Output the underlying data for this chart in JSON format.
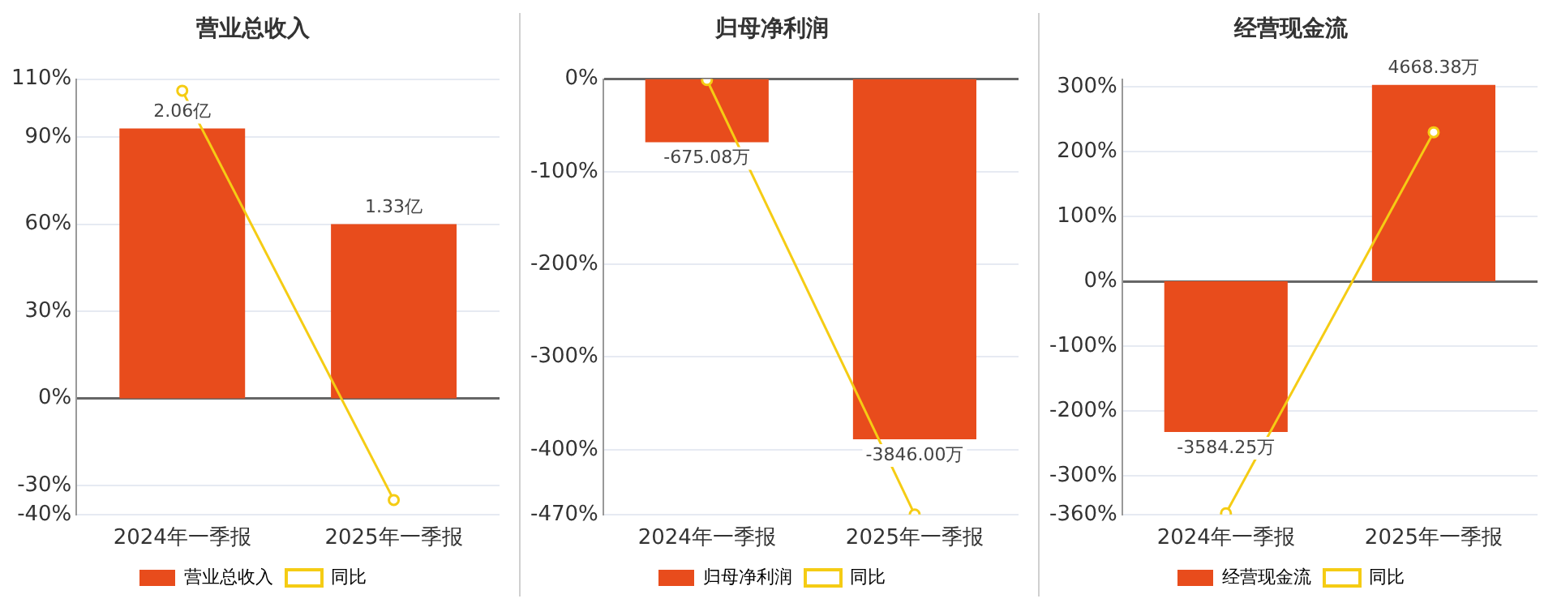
{
  "chart_data": [
    {
      "type": "bar",
      "title": "营业总收入",
      "categories": [
        "2024年一季报",
        "2025年一季报"
      ],
      "series": [
        {
          "name": "营业总收入",
          "axis": "y2",
          "color": "#e84c1c",
          "values": [
            2.06,
            1.33
          ],
          "value_labels": [
            "2.06亿",
            "1.33亿"
          ]
        },
        {
          "name": "同比",
          "type": "line",
          "color": "#f5cc14",
          "values": [
            106,
            -35
          ]
        }
      ],
      "ylim": [
        -40,
        110
      ],
      "yticks": [
        {
          "value": -40,
          "label": "-40%"
        },
        {
          "value": -30,
          "label": "-30%"
        },
        {
          "value": 0,
          "label": "0%"
        },
        {
          "value": 30,
          "label": "30%"
        },
        {
          "value": 60,
          "label": "60%"
        },
        {
          "value": 90,
          "label": "90%"
        },
        {
          "value": 110,
          "label": "110%"
        }
      ],
      "y2lim": [
        -0.886,
        2.437
      ],
      "grid": "y",
      "legend": "bottom",
      "marker": "circle"
    },
    {
      "type": "bar",
      "title": "归母净利润",
      "categories": [
        "2024年一季报",
        "2025年一季报"
      ],
      "series": [
        {
          "name": "归母净利润",
          "axis": "y2",
          "color": "#e84c1c",
          "values": [
            -675.08,
            -3846.0
          ],
          "value_labels": [
            "-675.08万",
            "-3846.00万"
          ]
        },
        {
          "name": "同比",
          "type": "line",
          "color": "#f5cc14",
          "values": [
            -1,
            -470
          ]
        }
      ],
      "ylim": [
        -470,
        0
      ],
      "yticks": [
        {
          "value": -470,
          "label": "-470%"
        },
        {
          "value": -400,
          "label": "-400%"
        },
        {
          "value": -300,
          "label": "-300%"
        },
        {
          "value": -200,
          "label": "-200%"
        },
        {
          "value": -100,
          "label": "-100%"
        },
        {
          "value": 0,
          "label": "0%"
        }
      ],
      "y2lim": [
        -4648,
        0
      ],
      "grid": "y",
      "legend": "bottom",
      "marker": "circle"
    },
    {
      "type": "bar",
      "title": "经营现金流",
      "categories": [
        "2024年一季报",
        "2025年一季报"
      ],
      "series": [
        {
          "name": "经营现金流",
          "axis": "y2",
          "color": "#e84c1c",
          "values": [
            -3584.25,
            4668.38
          ],
          "value_labels": [
            "-3584.25万",
            "4668.38万"
          ]
        },
        {
          "name": "同比",
          "type": "line",
          "color": "#f5cc14",
          "values": [
            -358,
            230
          ]
        }
      ],
      "ylim": [
        -360,
        312
      ],
      "yticks": [
        {
          "value": -360,
          "label": "-360%"
        },
        {
          "value": -300,
          "label": "-300%"
        },
        {
          "value": -200,
          "label": "-200%"
        },
        {
          "value": -100,
          "label": "-100%"
        },
        {
          "value": 0,
          "label": "0%"
        },
        {
          "value": 100,
          "label": "100%"
        },
        {
          "value": 200,
          "label": "200%"
        },
        {
          "value": 300,
          "label": "300%"
        }
      ],
      "y2lim": [
        -5544,
        4805
      ],
      "grid": "y",
      "legend": "bottom",
      "marker": "circle"
    }
  ]
}
